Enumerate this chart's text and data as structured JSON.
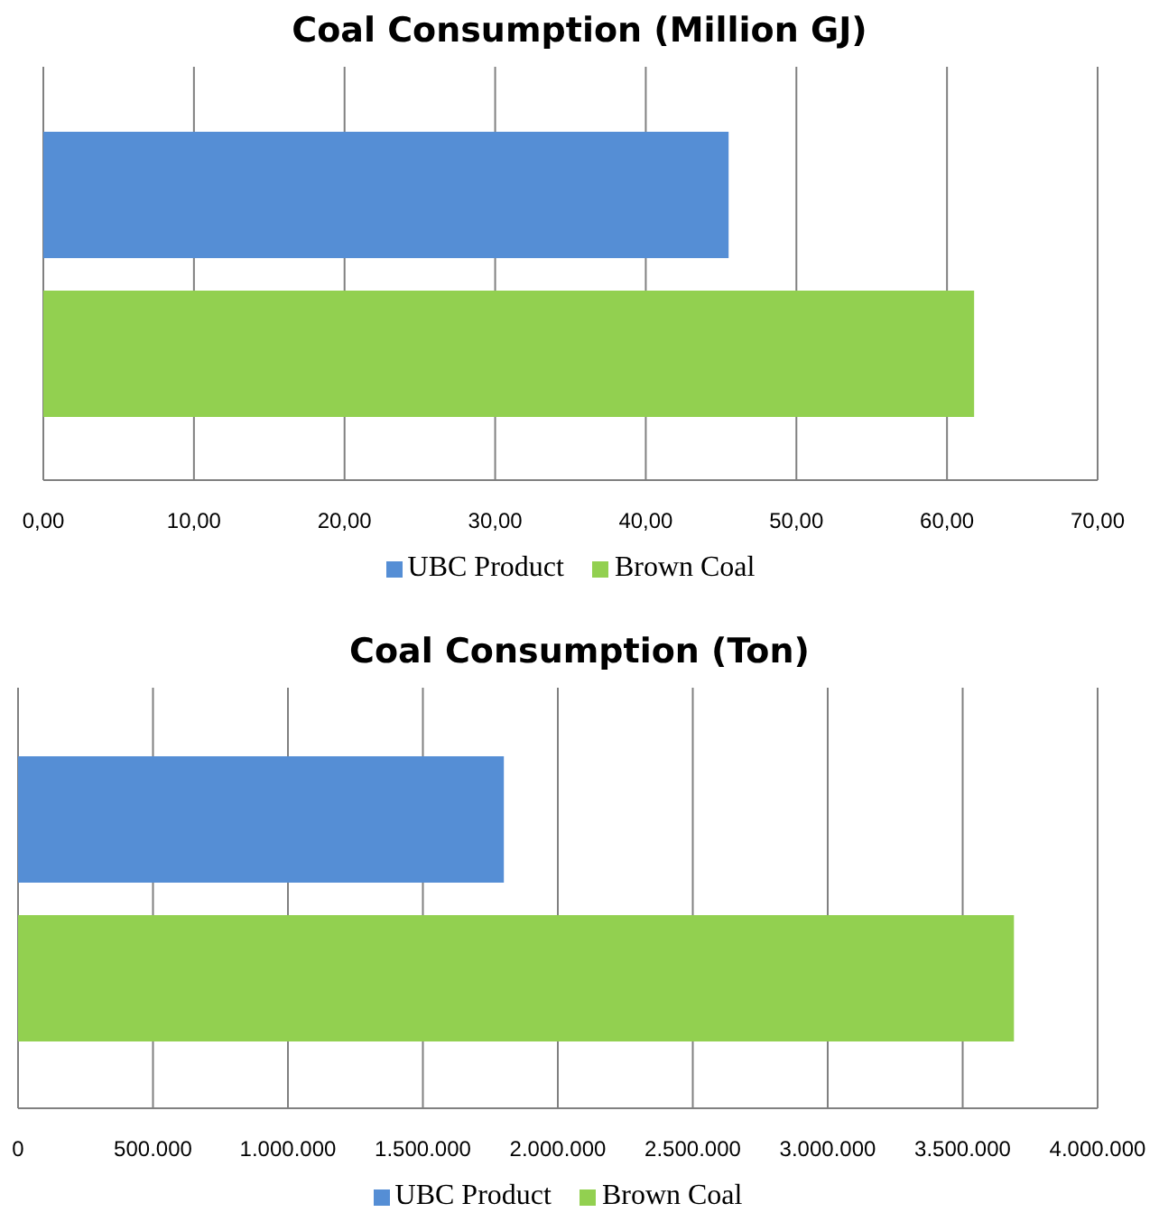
{
  "chart_data": [
    {
      "type": "bar",
      "orientation": "horizontal",
      "title": "Coal Consumption (Million GJ)",
      "categories": [
        null
      ],
      "series": [
        {
          "name": "UBC Product",
          "color": "#558ed5",
          "values": [
            45.5
          ]
        },
        {
          "name": "Brown Coal",
          "color": "#92d050",
          "values": [
            61.8
          ]
        }
      ],
      "xlim": [
        0,
        70
      ],
      "xticks": [
        {
          "value": 0,
          "label": "0,00"
        },
        {
          "value": 10,
          "label": "10,00"
        },
        {
          "value": 20,
          "label": "20,00"
        },
        {
          "value": 30,
          "label": "30,00"
        },
        {
          "value": 40,
          "label": "40,00"
        },
        {
          "value": 50,
          "label": "50,00"
        },
        {
          "value": 60,
          "label": "60,00"
        },
        {
          "value": 70,
          "label": "70,00"
        }
      ],
      "grid": "x",
      "legend": "bottom"
    },
    {
      "type": "bar",
      "orientation": "horizontal",
      "title": "Coal Consumption (Ton)",
      "categories": [
        null
      ],
      "series": [
        {
          "name": "UBC Product",
          "color": "#558ed5",
          "values": [
            1800000
          ]
        },
        {
          "name": "Brown Coal",
          "color": "#92d050",
          "values": [
            3690000
          ]
        }
      ],
      "xlim": [
        0,
        4000000
      ],
      "xticks": [
        0,
        {
          "value": 500000,
          "label": "500.000"
        },
        {
          "value": 1000000,
          "label": "1.000.000"
        },
        {
          "value": 1500000,
          "label": "1.500.000"
        },
        {
          "value": 2000000,
          "label": "2.000.000"
        },
        {
          "value": 2500000,
          "label": "2.500.000"
        },
        {
          "value": 3000000,
          "label": "3.000.000"
        },
        {
          "value": 3500000,
          "label": "3.500.000"
        },
        {
          "value": 4000000,
          "label": "4.000.000"
        }
      ],
      "grid": "x",
      "legend": "bottom"
    }
  ]
}
